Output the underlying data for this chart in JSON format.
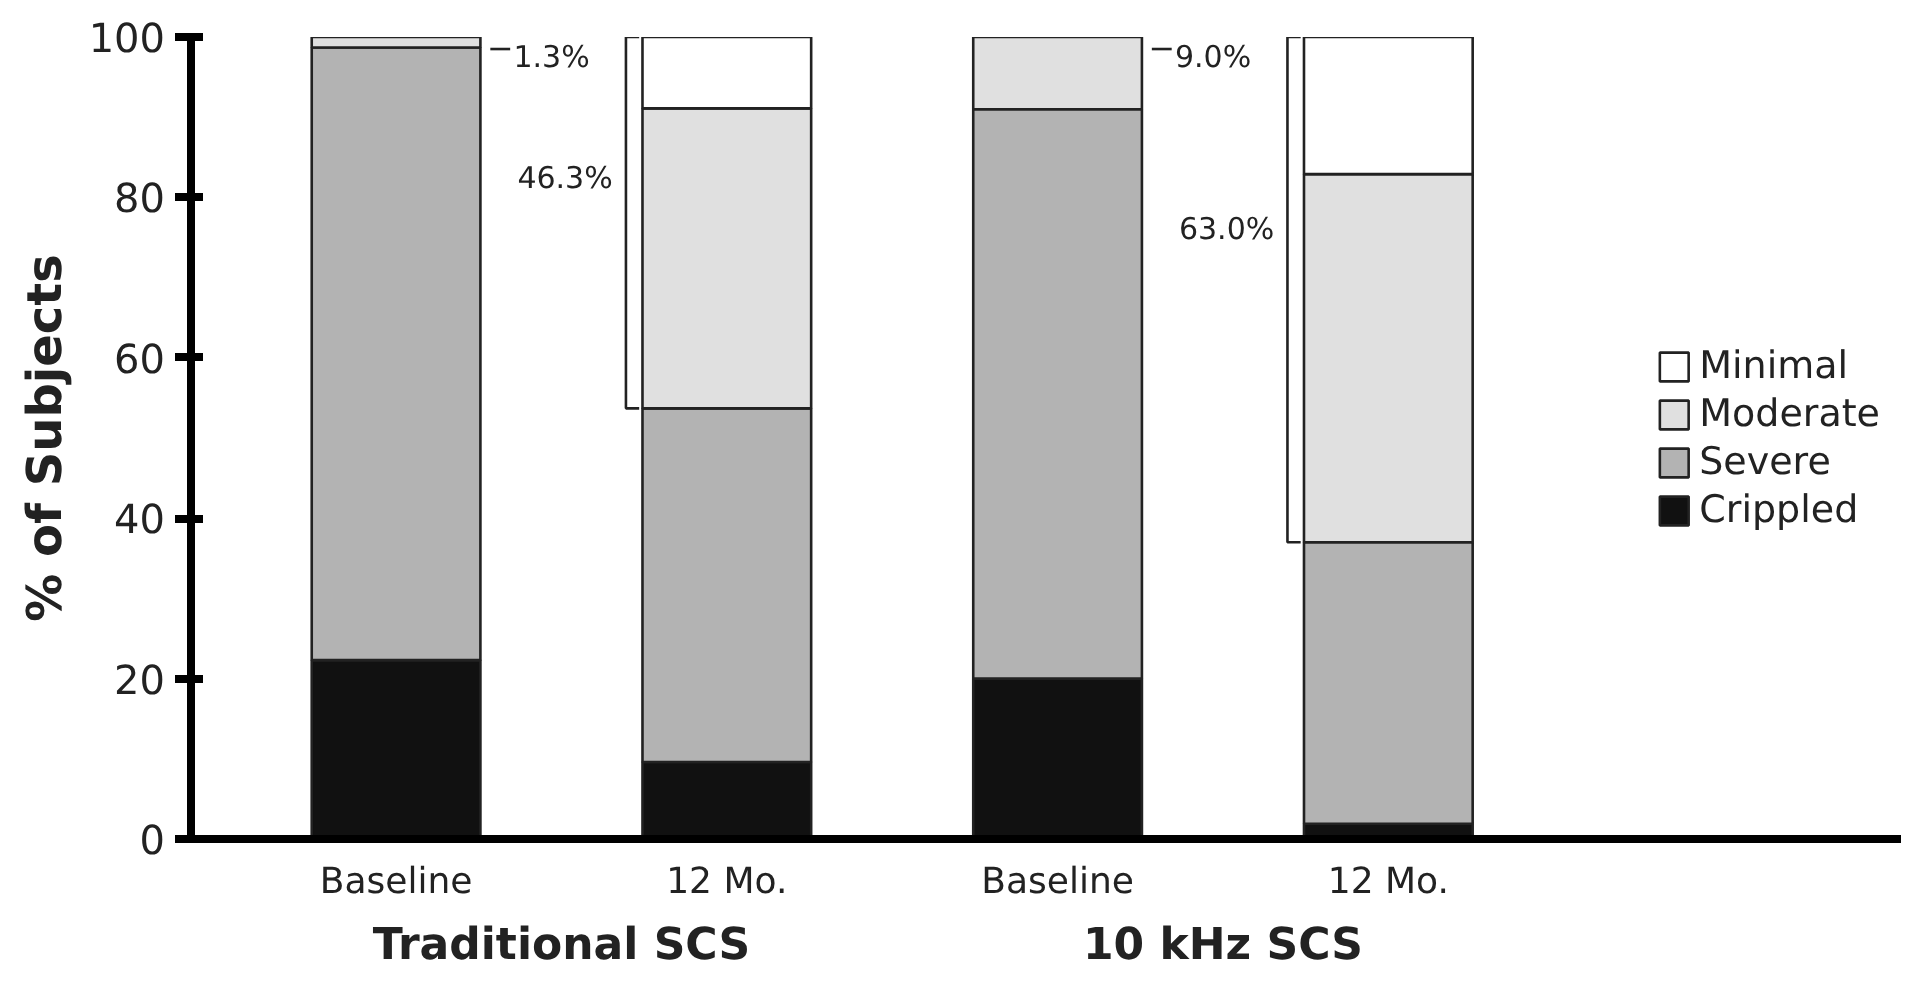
{
  "chart_data": {
    "type": "bar",
    "stacked": true,
    "ylabel": "% of Subjects",
    "categories": [
      "Baseline",
      "12 Mo.",
      "Baseline",
      "12 Mo."
    ],
    "series": [
      {
        "name": "Crippled",
        "color": "#111111",
        "values": [
          22.3,
          9.6,
          20.0,
          1.9
        ]
      },
      {
        "name": "Severe",
        "color": "#b3b3b3",
        "values": [
          76.4,
          44.1,
          71.0,
          35.1
        ]
      },
      {
        "name": "Moderate",
        "color": "#e0e0e0",
        "values": [
          1.3,
          37.4,
          9.0,
          45.9
        ]
      },
      {
        "name": "Minimal",
        "color": "#ffffff",
        "values": [
          null,
          8.9,
          null,
          17.1
        ]
      }
    ],
    "annotations": [
      "1.3%",
      "46.3%",
      "9.0%",
      "63.0%",
      "Traditional SCS",
      "10 kHz SCS"
    ],
    "ylim": [
      0,
      100
    ],
    "yticks": [
      0,
      20,
      40,
      60,
      80,
      100
    ],
    "grid": false,
    "legend": "right"
  }
}
